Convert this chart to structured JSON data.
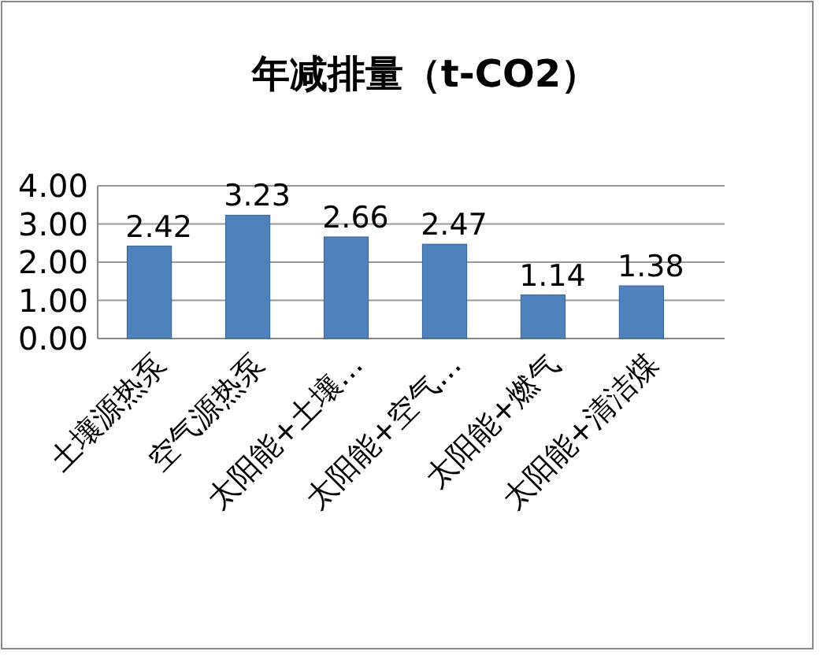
{
  "chart_data": {
    "type": "bar",
    "title": "年减排量（t-CO2）",
    "categories": [
      "土壤源热泵",
      "空气源热泵",
      "太阳能+土壤…",
      "太阳能+空气…",
      "太阳能+燃气",
      "太阳能+清洁煤"
    ],
    "values": [
      2.42,
      3.23,
      2.66,
      2.47,
      1.14,
      1.38
    ],
    "color": "#4f81bd",
    "ylim": [
      0,
      4
    ],
    "yticks": [
      {
        "value": 0,
        "label": "0.00"
      },
      {
        "value": 1,
        "label": "1.00"
      },
      {
        "value": 2,
        "label": "2.00"
      },
      {
        "value": 3,
        "label": "3.00"
      },
      {
        "value": 4,
        "label": "4.00"
      }
    ],
    "grid": "y",
    "data_labels": true
  }
}
